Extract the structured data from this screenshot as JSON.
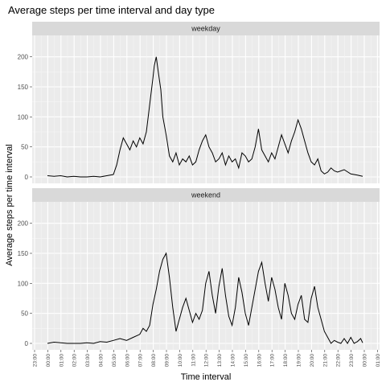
{
  "chart_data": {
    "type": "line",
    "title": "Average steps per time interval and day type",
    "xlabel": "Time interval",
    "ylabel": "Average steps per time interval",
    "ylim": [
      0,
      225
    ],
    "y_ticks": [
      0,
      50,
      100,
      150,
      200
    ],
    "x_tick_labels": [
      "23:00",
      "00:00",
      "01:00",
      "02:00",
      "03:00",
      "04:00",
      "05:00",
      "06:00",
      "07:00",
      "08:00",
      "09:00",
      "10:00",
      "11:00",
      "12:00",
      "13:00",
      "14:00",
      "15:00",
      "16:00",
      "17:00",
      "18:00",
      "19:00",
      "20:00",
      "21:00",
      "22:00",
      "23:00",
      "00:00",
      "01:00"
    ],
    "grid": true,
    "panels": [
      {
        "strip": "weekday",
        "x_hours": [
          0,
          0.5,
          1,
          1.5,
          2,
          2.5,
          3,
          3.5,
          4,
          4.5,
          5,
          5.25,
          5.5,
          5.75,
          6,
          6.25,
          6.5,
          6.75,
          7,
          7.25,
          7.5,
          7.75,
          8,
          8.1,
          8.25,
          8.4,
          8.5,
          8.6,
          8.75,
          9,
          9.25,
          9.5,
          9.75,
          10,
          10.25,
          10.5,
          10.75,
          11,
          11.25,
          11.5,
          11.75,
          12,
          12.25,
          12.5,
          12.75,
          13,
          13.25,
          13.5,
          13.75,
          14,
          14.25,
          14.5,
          14.75,
          15,
          15.25,
          15.5,
          15.75,
          16,
          16.25,
          16.5,
          16.75,
          17,
          17.25,
          17.5,
          17.75,
          18,
          18.25,
          18.5,
          18.75,
          19,
          19.25,
          19.5,
          19.75,
          20,
          20.25,
          20.5,
          20.75,
          21,
          21.25,
          21.5,
          21.75,
          22,
          22.5,
          23,
          23.5,
          23.9
        ],
        "steps": [
          2,
          1,
          2,
          0,
          1,
          0,
          0,
          1,
          0,
          2,
          4,
          20,
          45,
          65,
          55,
          45,
          60,
          50,
          65,
          55,
          75,
          120,
          165,
          185,
          200,
          175,
          160,
          145,
          100,
          70,
          35,
          25,
          40,
          20,
          30,
          25,
          35,
          20,
          25,
          45,
          60,
          70,
          50,
          40,
          25,
          30,
          40,
          20,
          35,
          25,
          30,
          15,
          40,
          35,
          25,
          30,
          50,
          80,
          45,
          35,
          25,
          40,
          30,
          50,
          70,
          55,
          40,
          60,
          75,
          95,
          80,
          60,
          40,
          25,
          20,
          30,
          10,
          5,
          8,
          15,
          10,
          8,
          12,
          5,
          3,
          1
        ]
      },
      {
        "strip": "weekend",
        "x_hours": [
          0,
          0.5,
          1,
          1.5,
          2,
          2.5,
          3,
          3.5,
          4,
          4.5,
          5,
          5.5,
          6,
          6.5,
          7,
          7.25,
          7.5,
          7.75,
          8,
          8.25,
          8.5,
          8.75,
          9,
          9.25,
          9.5,
          9.75,
          10,
          10.25,
          10.5,
          10.75,
          11,
          11.25,
          11.5,
          11.75,
          12,
          12.25,
          12.5,
          12.75,
          13,
          13.25,
          13.5,
          13.75,
          14,
          14.25,
          14.5,
          14.75,
          15,
          15.25,
          15.5,
          15.75,
          16,
          16.25,
          16.5,
          16.75,
          17,
          17.25,
          17.5,
          17.75,
          18,
          18.25,
          18.5,
          18.75,
          19,
          19.25,
          19.5,
          19.75,
          20,
          20.25,
          20.5,
          20.75,
          21,
          21.25,
          21.5,
          21.75,
          22,
          22.25,
          22.5,
          22.75,
          23,
          23.25,
          23.5,
          23.75,
          23.9
        ],
        "steps": [
          0,
          2,
          1,
          0,
          0,
          0,
          1,
          0,
          3,
          2,
          5,
          8,
          5,
          10,
          15,
          25,
          20,
          30,
          65,
          90,
          120,
          140,
          150,
          110,
          60,
          20,
          40,
          60,
          75,
          55,
          35,
          50,
          40,
          55,
          100,
          120,
          80,
          50,
          95,
          125,
          80,
          45,
          30,
          60,
          110,
          85,
          50,
          30,
          60,
          90,
          120,
          135,
          100,
          70,
          110,
          90,
          60,
          40,
          100,
          80,
          50,
          40,
          65,
          80,
          40,
          35,
          75,
          95,
          60,
          40,
          20,
          10,
          0,
          5,
          2,
          0,
          8,
          0,
          10,
          0,
          3,
          8,
          1
        ]
      }
    ]
  }
}
